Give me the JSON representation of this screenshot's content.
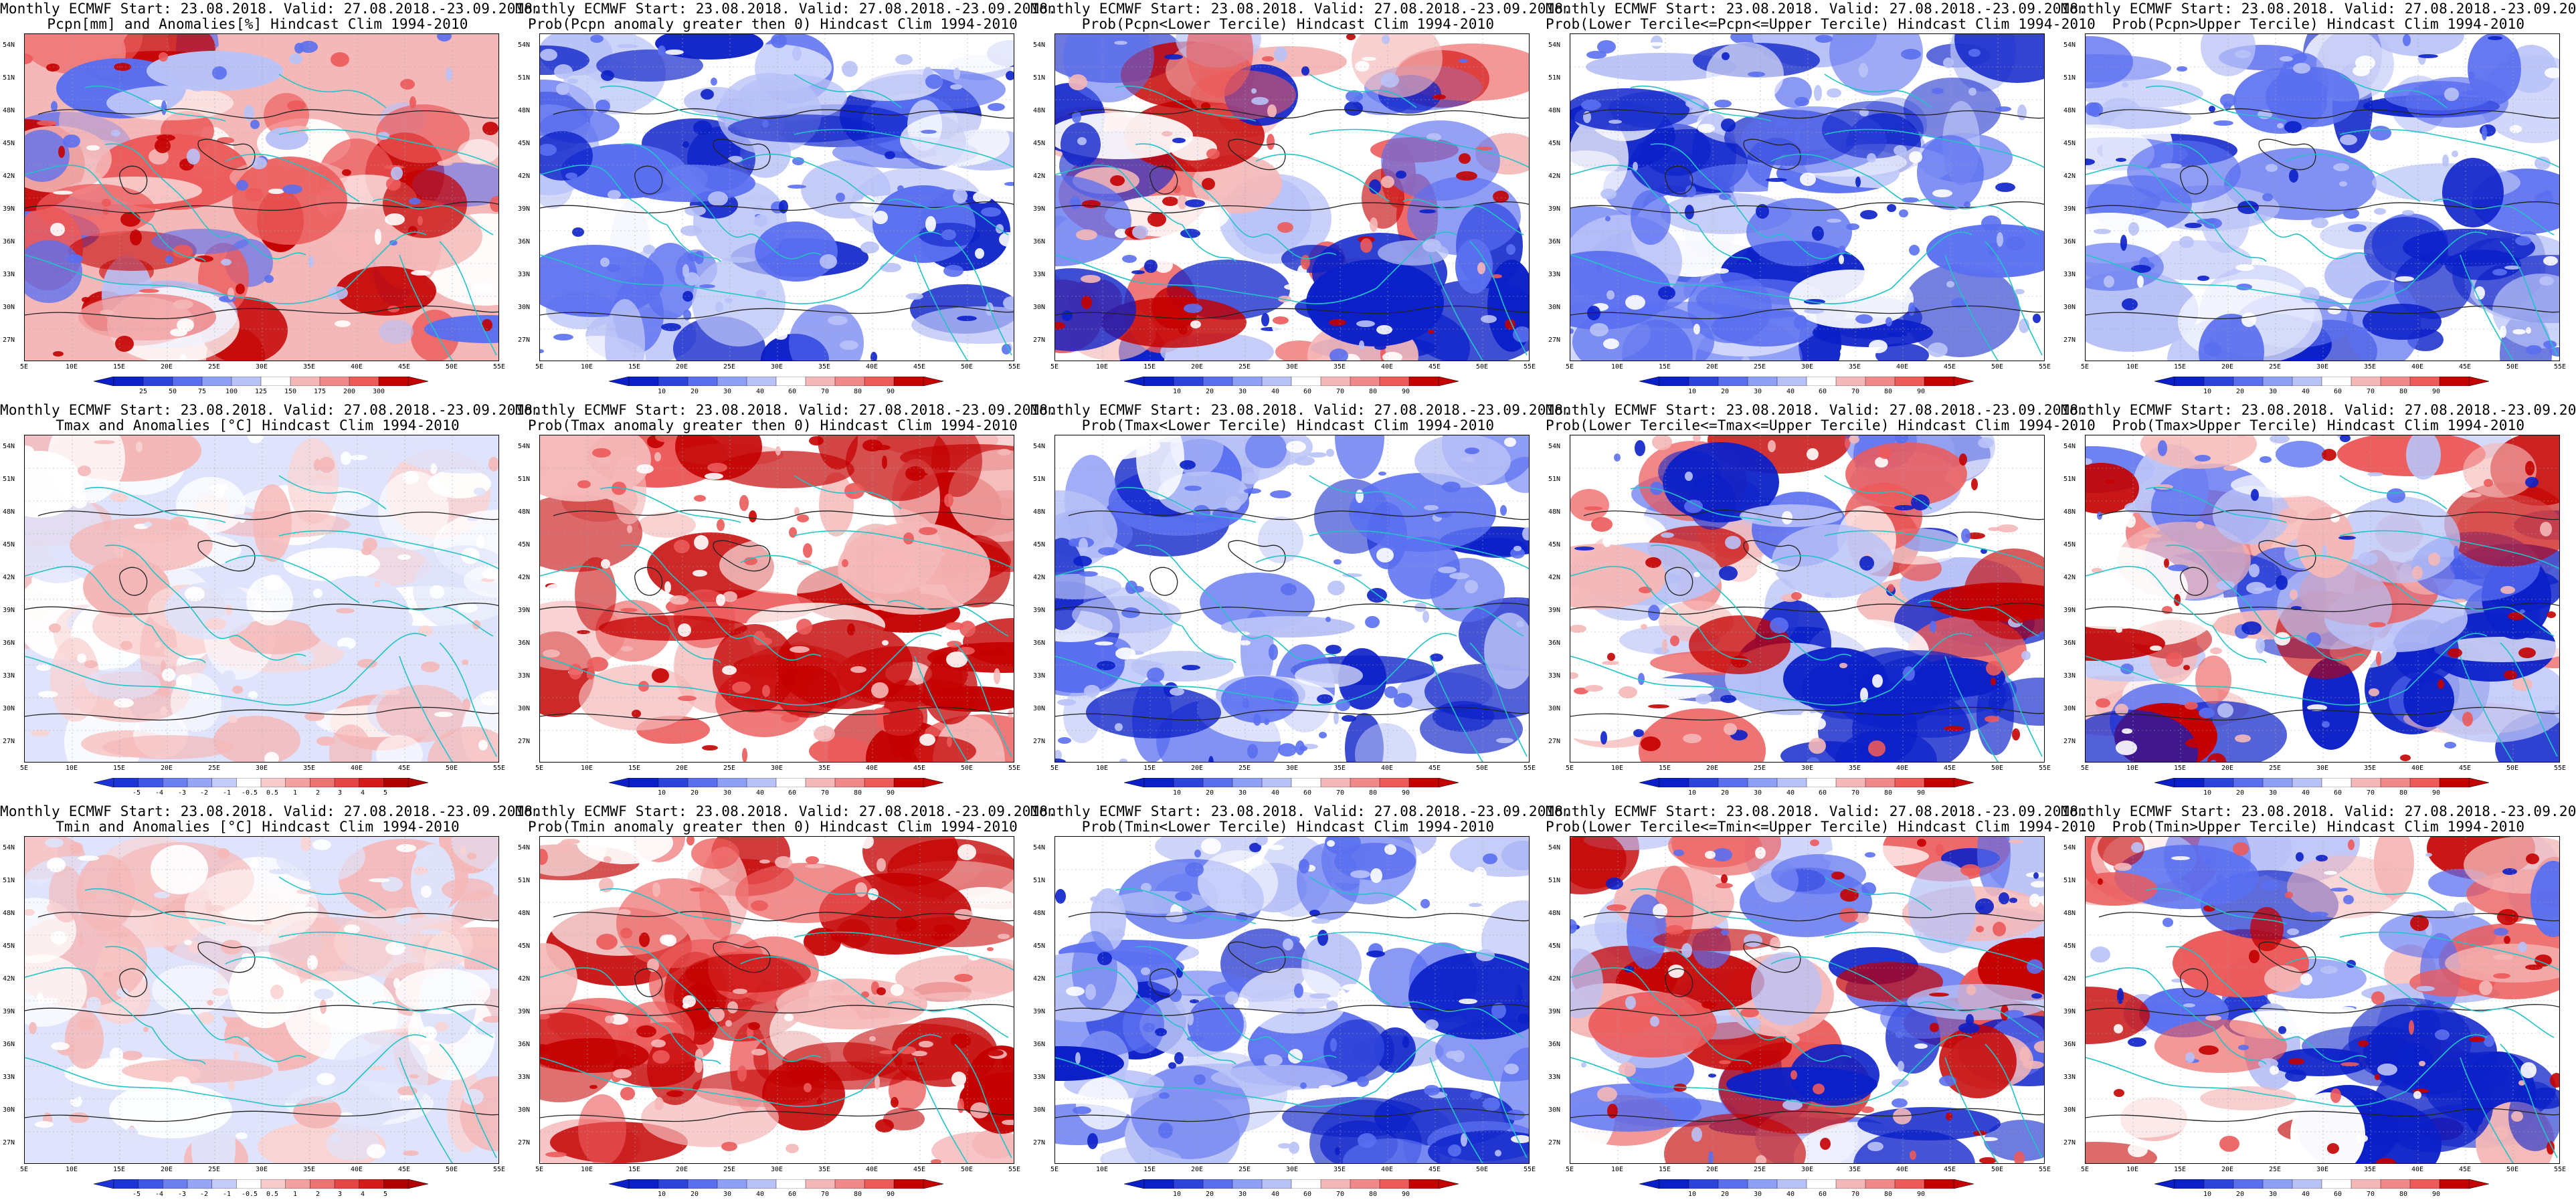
{
  "panels": [
    {
      "title1": "Monthly ECMWF Start: 23.08.2018. Valid: 27.08.2018.-23.09.2018.",
      "title2": "Pcpn[mm] and Anomalies[%] Hindcast Clim 1994-2010",
      "scheme": "anom",
      "cbar": [
        "25",
        "50",
        "75",
        "100",
        "125",
        "150",
        "175",
        "200",
        "300"
      ]
    },
    {
      "title1": "Monthly ECMWF Start: 23.08.2018. Valid: 27.08.2018.-23.09.2018.",
      "title2": "Prob(Pcpn anomaly greater then 0) Hindcast Clim 1994-2010",
      "scheme": "cool",
      "cbar": [
        "10",
        "20",
        "30",
        "40",
        "60",
        "70",
        "80",
        "90"
      ]
    },
    {
      "title1": "Monthly ECMWF Start: 23.08.2018. Valid: 27.08.2018.-23.09.2018.",
      "title2": "Prob(Pcpn<Lower Tercile) Hindcast Clim 1994-2010",
      "scheme": "mixed",
      "cbar": [
        "10",
        "20",
        "30",
        "40",
        "60",
        "70",
        "80",
        "90"
      ]
    },
    {
      "title1": "Monthly ECMWF Start: 23.08.2018. Valid: 27.08.2018.-23.09.2018.",
      "title2": "Prob(Lower Tercile<=Pcpn<=Upper Tercile) Hindcast Clim 1994-2010",
      "scheme": "cool",
      "cbar": [
        "10",
        "20",
        "30",
        "40",
        "60",
        "70",
        "80",
        "90"
      ]
    },
    {
      "title1": "Monthly ECMWF Start: 23.08.2018. Valid: 27.08.2018.-23.09.2018.",
      "title2": "Prob(Pcpn>Upper Tercile) Hindcast Clim 1994-2010",
      "scheme": "cool",
      "cbar": [
        "10",
        "20",
        "30",
        "40",
        "60",
        "70",
        "80",
        "90"
      ]
    },
    {
      "title1": "Monthly ECMWF Start: 23.08.2018. Valid: 27.08.2018.-23.09.2018.",
      "title2": "Tmax and Anomalies [°C] Hindcast Clim 1994-2010",
      "scheme": "lightwarm",
      "cbar": [
        "-5",
        "-4",
        "-3",
        "-2",
        "-1",
        "-0.5",
        "0.5",
        "1",
        "2",
        "3",
        "4",
        "5"
      ]
    },
    {
      "title1": "Monthly ECMWF Start: 23.08.2018. Valid: 27.08.2018.-23.09.2018.",
      "title2": "Prob(Tmax anomaly greater then 0) Hindcast Clim 1994-2010",
      "scheme": "warm",
      "cbar": [
        "10",
        "20",
        "30",
        "40",
        "60",
        "70",
        "80",
        "90"
      ]
    },
    {
      "title1": "Monthly ECMWF Start: 23.08.2018. Valid: 27.08.2018.-23.09.2018.",
      "title2": "Prob(Tmax<Lower Tercile) Hindcast Clim 1994-2010",
      "scheme": "cool",
      "cbar": [
        "10",
        "20",
        "30",
        "40",
        "60",
        "70",
        "80",
        "90"
      ]
    },
    {
      "title1": "Monthly ECMWF Start: 23.08.2018. Valid: 27.08.2018.-23.09.2018.",
      "title2": "Prob(Lower Tercile<=Tmax<=Upper Tercile) Hindcast Clim 1994-2010",
      "scheme": "mixed",
      "cbar": [
        "10",
        "20",
        "30",
        "40",
        "60",
        "70",
        "80",
        "90"
      ]
    },
    {
      "title1": "Monthly ECMWF Start: 23.08.2018. Valid: 27.08.2018.-23.09.2018.",
      "title2": "Prob(Tmax>Upper Tercile) Hindcast Clim 1994-2010",
      "scheme": "mixed",
      "cbar": [
        "10",
        "20",
        "30",
        "40",
        "60",
        "70",
        "80",
        "90"
      ]
    },
    {
      "title1": "Monthly ECMWF Start: 23.08.2018. Valid: 27.08.2018.-23.09.2018.",
      "title2": "Tmin and Anomalies [°C] Hindcast Clim 1994-2010",
      "scheme": "lightwarm",
      "cbar": [
        "-5",
        "-4",
        "-3",
        "-2",
        "-1",
        "-0.5",
        "0.5",
        "1",
        "2",
        "3",
        "4",
        "5"
      ]
    },
    {
      "title1": "Monthly ECMWF Start: 23.08.2018. Valid: 27.08.2018.-23.09.2018.",
      "title2": "Prob(Tmin anomaly greater then 0) Hindcast Clim 1994-2010",
      "scheme": "warm",
      "cbar": [
        "10",
        "20",
        "30",
        "40",
        "60",
        "70",
        "80",
        "90"
      ]
    },
    {
      "title1": "Monthly ECMWF Start: 23.08.2018. Valid: 27.08.2018.-23.09.2018.",
      "title2": "Prob(Tmin<Lower Tercile) Hindcast Clim 1994-2010",
      "scheme": "cool",
      "cbar": [
        "10",
        "20",
        "30",
        "40",
        "60",
        "70",
        "80",
        "90"
      ]
    },
    {
      "title1": "Monthly ECMWF Start: 23.08.2018. Valid: 27.08.2018.-23.09.2018.",
      "title2": "Prob(Lower Tercile<=Tmin<=Upper Tercile) Hindcast Clim 1994-2010",
      "scheme": "mixed",
      "cbar": [
        "10",
        "20",
        "30",
        "40",
        "60",
        "70",
        "80",
        "90"
      ]
    },
    {
      "title1": "Monthly ECMWF Start: 23.08.2018. Valid: 27.08.2018.-23.09.2018.",
      "title2": "Prob(Tmin>Upper Tercile) Hindcast Clim 1994-2010",
      "scheme": "mixed",
      "cbar": [
        "10",
        "20",
        "30",
        "40",
        "60",
        "70",
        "80",
        "90"
      ]
    }
  ],
  "lat_labels": [
    "54N",
    "51N",
    "48N",
    "45N",
    "42N",
    "39N",
    "36N",
    "33N",
    "30N",
    "27N"
  ],
  "lon_labels": [
    "5E",
    "10E",
    "15E",
    "20E",
    "25E",
    "30E",
    "35E",
    "40E",
    "45E",
    "50E",
    "55E"
  ],
  "colors": {
    "coast": "#22c3c8",
    "contour": "#222222",
    "deep_blue": "#0b20c8",
    "mid_blue": "#5a6ff0",
    "light_blue": "#b9c2f7",
    "white": "#ffffff",
    "light_red": "#f5b8b8",
    "mid_red": "#ec5a5a",
    "deep_red": "#c40000"
  }
}
